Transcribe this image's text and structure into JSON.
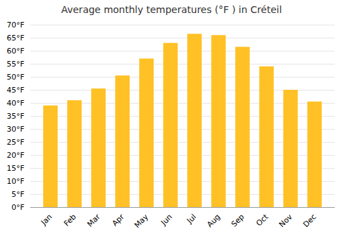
{
  "chart_data": {
    "type": "bar",
    "title": "Average monthly temperatures (°F ) in Créteil",
    "categories": [
      "Jan",
      "Feb",
      "Mar",
      "Apr",
      "May",
      "Jun",
      "Jul",
      "Aug",
      "Sep",
      "Oct",
      "Nov",
      "Dec"
    ],
    "values": [
      39,
      41,
      45.5,
      50.5,
      57,
      63,
      66.5,
      66,
      61.5,
      54,
      45,
      40.5
    ],
    "color": "#FFC125",
    "ylim": [
      0,
      70
    ],
    "yticks": [
      {
        "value": 0,
        "label": "0°F"
      },
      {
        "value": 5,
        "label": "5°F"
      },
      {
        "value": 10,
        "label": "10°F"
      },
      {
        "value": 15,
        "label": "15°F"
      },
      {
        "value": 20,
        "label": "20°F"
      },
      {
        "value": 25,
        "label": "25°F"
      },
      {
        "value": 30,
        "label": "30°F"
      },
      {
        "value": 35,
        "label": "35°F"
      },
      {
        "value": 40,
        "label": "40°F"
      },
      {
        "value": 45,
        "label": "45°F"
      },
      {
        "value": 50,
        "label": "50°F"
      },
      {
        "value": 55,
        "label": "55°F"
      },
      {
        "value": 60,
        "label": "60°F"
      },
      {
        "value": 65,
        "label": "65°F"
      },
      {
        "value": 70,
        "label": "70°F"
      }
    ],
    "grid": true
  }
}
